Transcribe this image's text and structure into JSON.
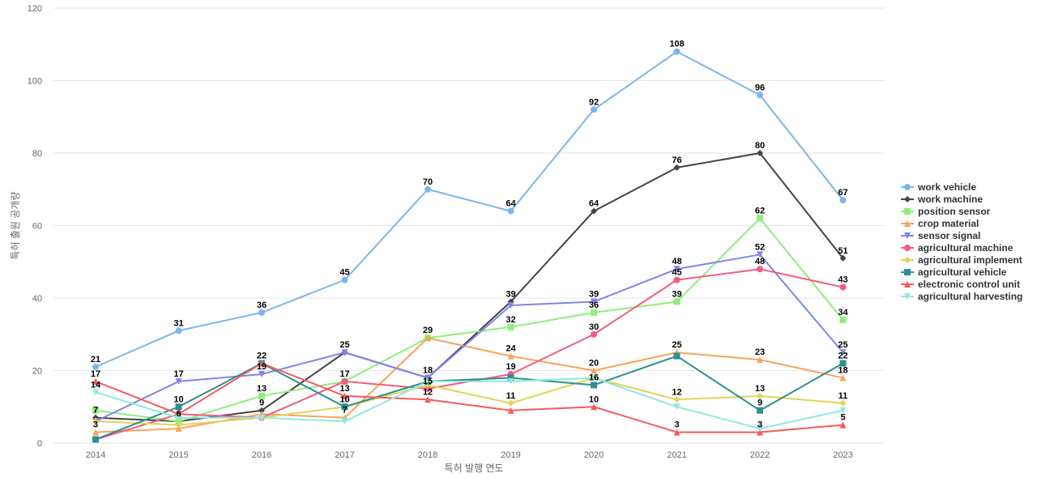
{
  "chart_data": {
    "type": "line",
    "title": "",
    "xlabel": "특허 발행 연도",
    "ylabel": "특허 출원 공개량",
    "x": [
      "2014",
      "2015",
      "2016",
      "2017",
      "2018",
      "2019",
      "2020",
      "2021",
      "2022",
      "2023"
    ],
    "ylim": [
      0,
      120
    ],
    "yticks": [
      0,
      20,
      40,
      60,
      80,
      100,
      120
    ],
    "grid": true,
    "legend_position": "right",
    "series": [
      {
        "name": "work vehicle",
        "color": "#7cb5ec",
        "marker": "circle",
        "values": [
          21,
          31,
          36,
          45,
          70,
          64,
          92,
          108,
          96,
          67
        ]
      },
      {
        "name": "work machine",
        "color": "#434348",
        "marker": "diamond",
        "values": [
          7,
          6,
          9,
          25,
          18,
          39,
          64,
          76,
          80,
          51
        ]
      },
      {
        "name": "position sensor",
        "color": "#90ed7d",
        "marker": "square",
        "values": [
          9,
          6,
          13,
          17,
          29,
          32,
          36,
          39,
          62,
          34
        ]
      },
      {
        "name": "crop material",
        "color": "#f7a35c",
        "marker": "triangle",
        "values": [
          3,
          4,
          8,
          7,
          29,
          24,
          20,
          25,
          23,
          18
        ]
      },
      {
        "name": "sensor signal",
        "color": "#8085e9",
        "marker": "triangle-down",
        "values": [
          6,
          17,
          19,
          25,
          18,
          38,
          39,
          48,
          52,
          25
        ]
      },
      {
        "name": "agricultural machine",
        "color": "#f15c80",
        "marker": "circle",
        "values": [
          1,
          8,
          7,
          17,
          15,
          19,
          30,
          45,
          48,
          43
        ]
      },
      {
        "name": "agricultural implement",
        "color": "#e4d354",
        "marker": "diamond",
        "values": [
          6,
          5,
          7,
          10,
          16,
          11,
          18,
          12,
          13,
          11
        ]
      },
      {
        "name": "agricultural vehicle",
        "color": "#2b908f",
        "marker": "square",
        "values": [
          1,
          10,
          22,
          10,
          17,
          18,
          16,
          24,
          9,
          22
        ]
      },
      {
        "name": "electronic control unit",
        "color": "#f45b5b",
        "marker": "triangle",
        "values": [
          17,
          8,
          22,
          13,
          12,
          9,
          10,
          3,
          3,
          5
        ]
      },
      {
        "name": "agricultural harvesting",
        "color": "#91e8e1",
        "marker": "triangle-down",
        "values": [
          14,
          7,
          7,
          6,
          17,
          17,
          18,
          10,
          4,
          9
        ]
      }
    ],
    "data_labels": [
      {
        "x": "2014",
        "text": "21"
      },
      {
        "x": "2014",
        "text": "17"
      },
      {
        "x": "2014",
        "text": "14"
      },
      {
        "x": "2014",
        "text": "7"
      },
      {
        "x": "2014",
        "text": "3"
      },
      {
        "x": "2015",
        "text": "31"
      },
      {
        "x": "2015",
        "text": "17"
      },
      {
        "x": "2015",
        "text": "10"
      },
      {
        "x": "2015",
        "text": "6"
      },
      {
        "x": "2016",
        "text": "36"
      },
      {
        "x": "2016",
        "text": "22"
      },
      {
        "x": "2016",
        "text": "19"
      },
      {
        "x": "2016",
        "text": "13"
      },
      {
        "x": "2016",
        "text": "9"
      },
      {
        "x": "2017",
        "text": "45"
      },
      {
        "x": "2017",
        "text": "25"
      },
      {
        "x": "2017",
        "text": "17"
      },
      {
        "x": "2017",
        "text": "13"
      },
      {
        "x": "2017",
        "text": "10"
      },
      {
        "x": "2017",
        "text": "7"
      },
      {
        "x": "2018",
        "text": "70"
      },
      {
        "x": "2018",
        "text": "29"
      },
      {
        "x": "2018",
        "text": "18"
      },
      {
        "x": "2018",
        "text": "15"
      },
      {
        "x": "2018",
        "text": "12"
      },
      {
        "x": "2019",
        "text": "64"
      },
      {
        "x": "2019",
        "text": "39"
      },
      {
        "x": "2019",
        "text": "32"
      },
      {
        "x": "2019",
        "text": "24"
      },
      {
        "x": "2019",
        "text": "19"
      },
      {
        "x": "2019",
        "text": "11"
      },
      {
        "x": "2020",
        "text": "92"
      },
      {
        "x": "2020",
        "text": "64"
      },
      {
        "x": "2020",
        "text": "39"
      },
      {
        "x": "2020",
        "text": "36"
      },
      {
        "x": "2020",
        "text": "30"
      },
      {
        "x": "2020",
        "text": "20"
      },
      {
        "x": "2020",
        "text": "16"
      },
      {
        "x": "2020",
        "text": "10"
      },
      {
        "x": "2021",
        "text": "108"
      },
      {
        "x": "2021",
        "text": "76"
      },
      {
        "x": "2021",
        "text": "48"
      },
      {
        "x": "2021",
        "text": "45"
      },
      {
        "x": "2021",
        "text": "39"
      },
      {
        "x": "2021",
        "text": "25"
      },
      {
        "x": "2021",
        "text": "12"
      },
      {
        "x": "2021",
        "text": "3"
      },
      {
        "x": "2022",
        "text": "96"
      },
      {
        "x": "2022",
        "text": "80"
      },
      {
        "x": "2022",
        "text": "62"
      },
      {
        "x": "2022",
        "text": "52"
      },
      {
        "x": "2022",
        "text": "48"
      },
      {
        "x": "2022",
        "text": "23"
      },
      {
        "x": "2022",
        "text": "13"
      },
      {
        "x": "2022",
        "text": "9"
      },
      {
        "x": "2022",
        "text": "3"
      },
      {
        "x": "2023",
        "text": "67"
      },
      {
        "x": "2023",
        "text": "51"
      },
      {
        "x": "2023",
        "text": "43"
      },
      {
        "x": "2023",
        "text": "34"
      },
      {
        "x": "2023",
        "text": "25"
      },
      {
        "x": "2023",
        "text": "22"
      },
      {
        "x": "2023",
        "text": "18"
      },
      {
        "x": "2023",
        "text": "11"
      },
      {
        "x": "2023",
        "text": "5"
      }
    ]
  }
}
